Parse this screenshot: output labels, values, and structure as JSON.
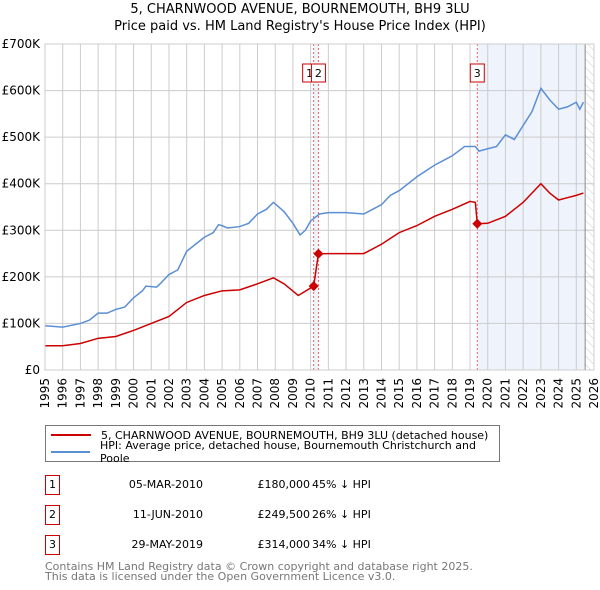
{
  "chart_data": {
    "type": "line",
    "title": "5, CHARNWOOD AVENUE, BOURNEMOUTH, BH9 3LU",
    "subtitle": "Price paid vs. HM Land Registry's House Price Index (HPI)",
    "xlim": [
      1995,
      2026
    ],
    "ylim": [
      0,
      700000
    ],
    "x_ticks": [
      "1995",
      "1996",
      "1997",
      "1998",
      "1999",
      "2000",
      "2001",
      "2002",
      "2003",
      "2004",
      "2005",
      "2006",
      "2007",
      "2008",
      "2009",
      "2010",
      "2011",
      "2012",
      "2013",
      "2014",
      "2015",
      "2016",
      "2017",
      "2018",
      "2019",
      "2020",
      "2021",
      "2022",
      "2023",
      "2024",
      "2025",
      "2026"
    ],
    "y_ticks": [
      {
        "v": 0,
        "label": "£0"
      },
      {
        "v": 100000,
        "label": "£100K"
      },
      {
        "v": 200000,
        "label": "£200K"
      },
      {
        "v": 300000,
        "label": "£300K"
      },
      {
        "v": 400000,
        "label": "£400K"
      },
      {
        "v": 500000,
        "label": "£500K"
      },
      {
        "v": 600000,
        "label": "£600K"
      },
      {
        "v": 700000,
        "label": "£700K"
      }
    ],
    "grid": true,
    "series": [
      {
        "name": "5, CHARNWOOD AVENUE, BOURNEMOUTH, BH9 3LU (detached house)",
        "color": "#cc0000",
        "points": [
          [
            1995,
            52000
          ],
          [
            1996,
            52000
          ],
          [
            1997,
            57000
          ],
          [
            1998,
            68000
          ],
          [
            1999,
            72000
          ],
          [
            2000,
            85000
          ],
          [
            2001,
            100000
          ],
          [
            2002,
            115000
          ],
          [
            2003,
            145000
          ],
          [
            2004,
            160000
          ],
          [
            2005,
            170000
          ],
          [
            2006,
            172000
          ],
          [
            2007,
            185000
          ],
          [
            2007.9,
            198000
          ],
          [
            2008.5,
            185000
          ],
          [
            2009.3,
            160000
          ],
          [
            2010.17,
            180000
          ],
          [
            2010.44,
            249500
          ],
          [
            2011,
            250000
          ],
          [
            2012,
            250000
          ],
          [
            2013,
            250000
          ],
          [
            2014,
            270000
          ],
          [
            2015,
            295000
          ],
          [
            2016,
            310000
          ],
          [
            2017,
            330000
          ],
          [
            2018,
            345000
          ],
          [
            2019,
            362000
          ],
          [
            2019.3,
            360000
          ],
          [
            2019.41,
            314000
          ],
          [
            2020,
            315000
          ],
          [
            2021,
            330000
          ],
          [
            2022,
            360000
          ],
          [
            2023,
            400000
          ],
          [
            2023.5,
            380000
          ],
          [
            2024,
            365000
          ],
          [
            2024.5,
            370000
          ],
          [
            2025,
            375000
          ],
          [
            2025.4,
            380000
          ]
        ]
      },
      {
        "name": "HPI: Average price, detached house, Bournemouth Christchurch and Poole",
        "color": "#5b8fd4",
        "points": [
          [
            1995,
            95000
          ],
          [
            1996,
            92000
          ],
          [
            1997,
            100000
          ],
          [
            1997.5,
            107000
          ],
          [
            1998,
            122000
          ],
          [
            1998.5,
            122000
          ],
          [
            1999,
            130000
          ],
          [
            1999.5,
            135000
          ],
          [
            2000,
            155000
          ],
          [
            2000.5,
            170000
          ],
          [
            2000.7,
            180000
          ],
          [
            2001.3,
            178000
          ],
          [
            2001.5,
            185000
          ],
          [
            2002,
            205000
          ],
          [
            2002.5,
            215000
          ],
          [
            2003,
            255000
          ],
          [
            2003.5,
            270000
          ],
          [
            2004,
            285000
          ],
          [
            2004.5,
            295000
          ],
          [
            2004.8,
            312000
          ],
          [
            2005,
            310000
          ],
          [
            2005.3,
            305000
          ],
          [
            2006,
            308000
          ],
          [
            2006.5,
            315000
          ],
          [
            2007,
            335000
          ],
          [
            2007.5,
            345000
          ],
          [
            2007.9,
            360000
          ],
          [
            2008.5,
            340000
          ],
          [
            2009,
            315000
          ],
          [
            2009.4,
            290000
          ],
          [
            2009.7,
            300000
          ],
          [
            2010,
            320000
          ],
          [
            2010.5,
            335000
          ],
          [
            2011,
            338000
          ],
          [
            2012,
            338000
          ],
          [
            2013,
            335000
          ],
          [
            2013.5,
            345000
          ],
          [
            2014,
            355000
          ],
          [
            2014.5,
            375000
          ],
          [
            2015,
            385000
          ],
          [
            2016,
            415000
          ],
          [
            2017,
            440000
          ],
          [
            2017.5,
            450000
          ],
          [
            2018,
            460000
          ],
          [
            2018.7,
            480000
          ],
          [
            2019.3,
            480000
          ],
          [
            2019.5,
            470000
          ],
          [
            2020,
            475000
          ],
          [
            2020.5,
            480000
          ],
          [
            2021,
            505000
          ],
          [
            2021.5,
            495000
          ],
          [
            2022,
            525000
          ],
          [
            2022.5,
            555000
          ],
          [
            2023,
            605000
          ],
          [
            2023.5,
            580000
          ],
          [
            2024,
            560000
          ],
          [
            2024.5,
            565000
          ],
          [
            2025,
            575000
          ],
          [
            2025.2,
            560000
          ],
          [
            2025.4,
            575000
          ]
        ]
      }
    ],
    "sales": [
      {
        "id": "1",
        "x": 2010.17,
        "y": 180000
      },
      {
        "id": "2",
        "x": 2010.44,
        "y": 249500
      },
      {
        "id": "3",
        "x": 2019.41,
        "y": 314000
      }
    ],
    "shaded_from": 2019.41,
    "forecast_from": 2025.5,
    "legend_placement": "below"
  },
  "legend": {
    "red": "5, CHARNWOOD AVENUE, BOURNEMOUTH, BH9 3LU (detached house)",
    "blue": "HPI: Average price, detached house, Bournemouth Christchurch and Poole"
  },
  "table": [
    {
      "num": "1",
      "date": "05-MAR-2010",
      "price": "£180,000",
      "hpi": "45% ↓ HPI"
    },
    {
      "num": "2",
      "date": "11-JUN-2010",
      "price": "£249,500",
      "hpi": "26% ↓ HPI"
    },
    {
      "num": "3",
      "date": "29-MAY-2019",
      "price": "£314,000",
      "hpi": "34% ↓ HPI"
    }
  ],
  "footer": {
    "line1": "Contains HM Land Registry data © Crown copyright and database right 2025.",
    "line2": "This data is licensed under the Open Government Licence v3.0."
  }
}
